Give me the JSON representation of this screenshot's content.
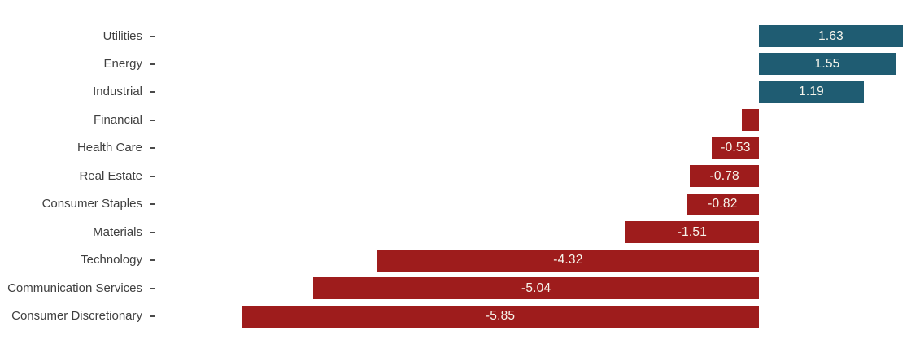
{
  "chart_data": {
    "type": "bar",
    "orientation": "horizontal",
    "title": "",
    "xlabel": "",
    "ylabel": "",
    "grid": false,
    "legend": false,
    "xlim": [
      -8.58,
      1.72
    ],
    "categories": [
      "Utilities",
      "Energy",
      "Industrial",
      "Financial",
      "Health Care",
      "Real Estate",
      "Consumer Staples",
      "Materials",
      "Technology",
      "Communication Services",
      "Consumer Discretionary"
    ],
    "values": [
      1.63,
      1.55,
      1.19,
      -0.19,
      -0.53,
      -0.78,
      -0.82,
      -1.51,
      -4.32,
      -5.04,
      -5.85
    ],
    "bar_labels": [
      "1.63",
      "1.55",
      "1.19",
      "",
      "-0.53",
      "-0.78",
      "-0.82",
      "-1.51",
      "-4.32",
      "-5.04",
      "-5.85"
    ],
    "colors": {
      "positive": "#1f5c72",
      "negative": "#9e1c1c",
      "positive_border": "rgba(31,92,114,0.45)",
      "negative_border": "rgba(158,28,28,0.45)",
      "bar_label_text": "#f7f5ec",
      "axis_label_text": "#3f3f3f",
      "tick": "#4a4a4a",
      "background": "#ffffff"
    }
  }
}
